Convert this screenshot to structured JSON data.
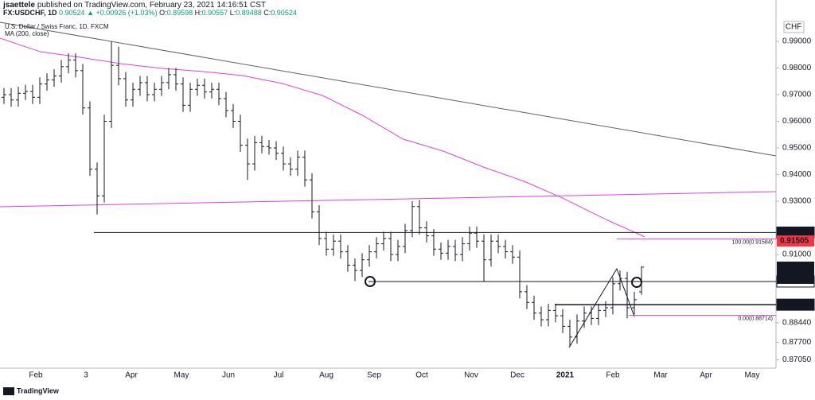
{
  "header": {
    "author": "jsaettele",
    "published": "published on TradingView.com, February 23, 2021 14:16:51 CST",
    "symbol": "FX:USDCHF, 1D",
    "last": "0.90524",
    "change": "▲ +0.00926 (+1.03%)",
    "ohlc": [
      [
        "O:",
        "0.89598"
      ],
      [
        "H:",
        "0.90557"
      ],
      [
        "L:",
        "0.89488"
      ],
      [
        "C:",
        "0.90524"
      ]
    ]
  },
  "legend": [
    "U.S. Dollar / Swiss Franc, 1D, FXCM",
    "MA (200, close)"
  ],
  "currency": "CHF",
  "footer": "TradingView",
  "chart_data": {
    "type": "ohlc",
    "x_labels": [
      "Feb",
      "3",
      "Apr",
      "May",
      "Jun",
      "Jul",
      "Aug",
      "Sep",
      "Oct",
      "Nov",
      "Dec",
      "2021",
      "Feb",
      "Mar",
      "Apr",
      "May"
    ],
    "ylim": [
      0.86731,
      1.00552
    ],
    "yticks": [
      {
        "value": 0.99,
        "label": "0.99000"
      },
      {
        "value": 0.98,
        "label": "0.98000"
      },
      {
        "value": 0.97,
        "label": "0.97000"
      },
      {
        "value": 0.96,
        "label": "0.96000"
      },
      {
        "value": 0.95,
        "label": "0.95000"
      },
      {
        "value": 0.94,
        "label": "0.94000"
      },
      {
        "value": 0.93,
        "label": "0.93000"
      },
      {
        "value": 0.91,
        "label": "0.91000"
      },
      {
        "value": 0.8844,
        "label": "0.88440"
      },
      {
        "value": 0.877,
        "label": "0.87700"
      },
      {
        "value": 0.8705,
        "label": "0.87050"
      }
    ],
    "grid": false,
    "bar_color": "#131722",
    "open": [
      0.969,
      0.97,
      0.968,
      0.9705,
      0.9712,
      0.969,
      0.974,
      0.9755,
      0.977,
      0.9805,
      0.983,
      0.979,
      0.965,
      0.942,
      0.932,
      0.96,
      0.981,
      0.976,
      0.968,
      0.972,
      0.9745,
      0.97,
      0.972,
      0.9745,
      0.9775,
      0.974,
      0.966,
      0.972,
      0.9735,
      0.971,
      0.972,
      0.9685,
      0.964,
      0.96,
      0.951,
      0.944,
      0.952,
      0.9505,
      0.95,
      0.948,
      0.944,
      0.942,
      0.9465,
      0.938,
      0.926,
      0.916,
      0.912,
      0.915,
      0.911,
      0.906,
      0.904,
      0.908,
      0.911,
      0.914,
      0.916,
      0.91,
      0.913,
      0.919,
      0.928,
      0.92,
      0.917,
      0.912,
      0.9105,
      0.913,
      0.91,
      0.914,
      0.918,
      0.915,
      0.908,
      0.915,
      0.913,
      0.911,
      0.909,
      0.896,
      0.892,
      0.888,
      0.8855,
      0.889,
      0.887,
      0.883,
      0.879,
      0.885,
      0.888,
      0.886,
      0.889,
      0.89,
      0.899,
      0.901,
      0.89,
      0.89598
    ],
    "high": [
      0.9725,
      0.9725,
      0.973,
      0.9737,
      0.9737,
      0.9765,
      0.978,
      0.9795,
      0.983,
      0.9855,
      0.9855,
      0.9815,
      0.9675,
      0.9445,
      0.9625,
      0.99,
      0.988,
      0.9785,
      0.9745,
      0.977,
      0.977,
      0.9745,
      0.977,
      0.98,
      0.98,
      0.9765,
      0.9745,
      0.976,
      0.976,
      0.9745,
      0.9745,
      0.971,
      0.9665,
      0.9625,
      0.9535,
      0.9545,
      0.9545,
      0.953,
      0.9525,
      0.9505,
      0.9465,
      0.949,
      0.949,
      0.9405,
      0.9285,
      0.9185,
      0.9175,
      0.9175,
      0.9135,
      0.9085,
      0.9105,
      0.9135,
      0.9165,
      0.9185,
      0.9185,
      0.9155,
      0.9215,
      0.93,
      0.9305,
      0.9225,
      0.9195,
      0.9145,
      0.9155,
      0.9155,
      0.9165,
      0.9205,
      0.9205,
      0.9175,
      0.9175,
      0.9175,
      0.9155,
      0.9135,
      0.9115,
      0.8985,
      0.8945,
      0.8905,
      0.8915,
      0.8915,
      0.8895,
      0.8855,
      0.8875,
      0.8905,
      0.8905,
      0.8915,
      0.8925,
      0.9015,
      0.904,
      0.9035,
      0.896,
      0.90557
    ],
    "low": [
      0.9665,
      0.9655,
      0.9655,
      0.968,
      0.9665,
      0.9665,
      0.9715,
      0.973,
      0.9745,
      0.978,
      0.9765,
      0.9625,
      0.9395,
      0.925,
      0.9295,
      0.9575,
      0.9735,
      0.9655,
      0.9655,
      0.9695,
      0.9675,
      0.9675,
      0.9695,
      0.972,
      0.9715,
      0.9635,
      0.9635,
      0.9695,
      0.9685,
      0.9685,
      0.966,
      0.9615,
      0.9575,
      0.9485,
      0.938,
      0.9415,
      0.948,
      0.9475,
      0.9455,
      0.9415,
      0.9395,
      0.9395,
      0.9355,
      0.9235,
      0.9135,
      0.9095,
      0.9095,
      0.9085,
      0.9035,
      0.9,
      0.9015,
      0.9055,
      0.9085,
      0.9115,
      0.9075,
      0.9075,
      0.9105,
      0.9165,
      0.9175,
      0.9145,
      0.9095,
      0.908,
      0.908,
      0.9075,
      0.9075,
      0.9115,
      0.9125,
      0.9,
      0.9055,
      0.9105,
      0.9085,
      0.9065,
      0.8935,
      0.8895,
      0.8855,
      0.883,
      0.883,
      0.8845,
      0.8805,
      0.8755,
      0.8765,
      0.8825,
      0.8835,
      0.8835,
      0.8865,
      0.8875,
      0.8965,
      0.886,
      0.8875,
      0.89488
    ],
    "close": [
      0.97,
      0.968,
      0.9705,
      0.9712,
      0.969,
      0.974,
      0.9755,
      0.977,
      0.9805,
      0.983,
      0.979,
      0.965,
      0.942,
      0.932,
      0.96,
      0.981,
      0.976,
      0.968,
      0.972,
      0.9745,
      0.97,
      0.972,
      0.9745,
      0.9775,
      0.974,
      0.966,
      0.972,
      0.9735,
      0.971,
      0.972,
      0.9685,
      0.964,
      0.96,
      0.951,
      0.944,
      0.952,
      0.9505,
      0.95,
      0.948,
      0.944,
      0.942,
      0.9465,
      0.938,
      0.926,
      0.916,
      0.912,
      0.915,
      0.911,
      0.906,
      0.904,
      0.908,
      0.911,
      0.914,
      0.916,
      0.91,
      0.913,
      0.919,
      0.928,
      0.92,
      0.917,
      0.912,
      0.9105,
      0.913,
      0.91,
      0.914,
      0.918,
      0.915,
      0.908,
      0.915,
      0.913,
      0.911,
      0.909,
      0.896,
      0.892,
      0.888,
      0.8855,
      0.889,
      0.887,
      0.883,
      0.879,
      0.885,
      0.888,
      0.886,
      0.889,
      0.89,
      0.899,
      0.901,
      0.89,
      0.893,
      0.90524
    ],
    "ma": {
      "color": "#e040e0",
      "values": [
        0.9912,
        0.9861,
        0.984,
        0.9816,
        0.9799,
        0.9787,
        0.9772,
        0.9742,
        0.9697,
        0.9622,
        0.9533,
        0.9488,
        0.9428,
        0.9375,
        0.9309,
        0.9234,
        0.9166
      ]
    },
    "levels": [
      {
        "value": 0.91823,
        "label": "0.91823",
        "color": "#131722"
      },
      {
        "value": 0.89986,
        "label": "0.89986",
        "color": "#131722"
      },
      {
        "value": 0.89115,
        "label": "0.89115",
        "color": "#131722"
      }
    ],
    "price_labels": [
      {
        "value": 0.91505,
        "label": "0.91505",
        "color": "#f23645"
      },
      {
        "value": 0.90524,
        "label": "0.90524",
        "color": "#131722",
        "countdown": "01:43:11"
      }
    ],
    "fib": {
      "color": "#e040e0",
      "levels": [
        {
          "value": 0.91584,
          "label": "100.00(0.91584)"
        },
        {
          "value": 0.88714,
          "label": "0.00(0.88714)"
        }
      ]
    }
  }
}
